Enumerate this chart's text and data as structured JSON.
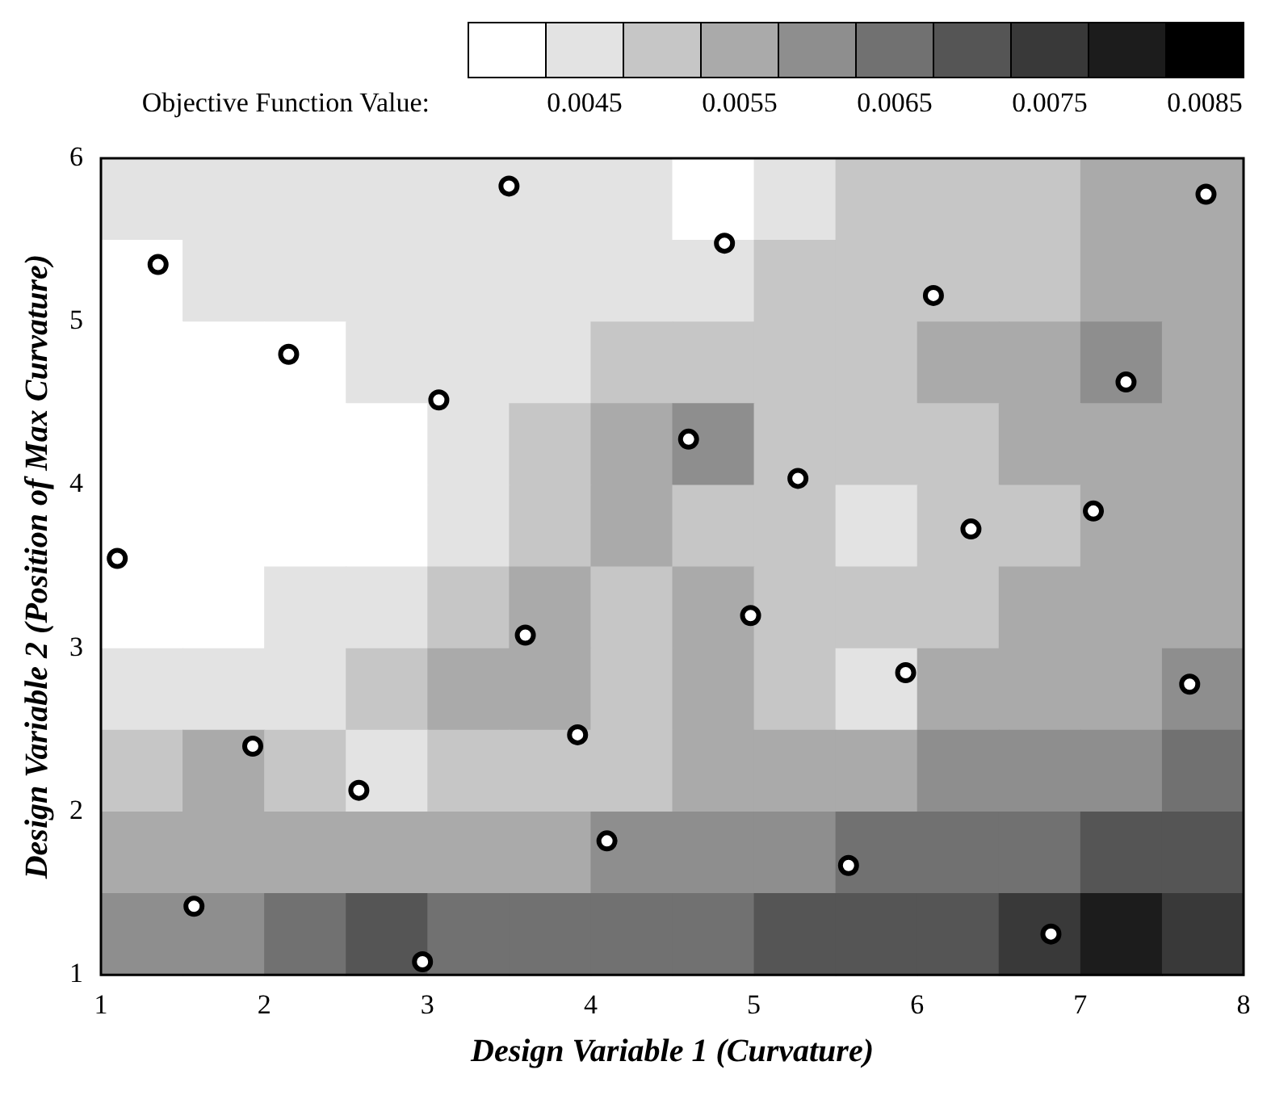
{
  "chart_data": {
    "type": "heatmap",
    "xlabel": "Design Variable 1 (Curvature)",
    "ylabel": "Design Variable 2 (Position of Max Curvature)",
    "clabel": "Objective Function Value:",
    "xlim": [
      1,
      8
    ],
    "ylim": [
      1,
      6
    ],
    "xticks": [
      1,
      2,
      3,
      4,
      5,
      6,
      7,
      8
    ],
    "yticks": [
      1,
      2,
      3,
      4,
      5,
      6
    ],
    "clim": [
      0.00375,
      0.00875
    ],
    "cticks": [
      0.0045,
      0.0055,
      0.0065,
      0.0075,
      0.0085
    ],
    "grid": false,
    "legend": false,
    "cells": [
      [
        0.0045,
        0.0045,
        0.0045,
        0.0045,
        0.0045,
        0.0045,
        0.0045,
        0.004,
        0.0045,
        0.005,
        0.005,
        0.005,
        0.0055,
        0.0055
      ],
      [
        0.004,
        0.0045,
        0.0045,
        0.0045,
        0.0045,
        0.0045,
        0.0045,
        0.0045,
        0.005,
        0.005,
        0.005,
        0.005,
        0.0055,
        0.0055
      ],
      [
        0.004,
        0.004,
        0.004,
        0.0045,
        0.0045,
        0.0045,
        0.005,
        0.005,
        0.005,
        0.005,
        0.0055,
        0.0055,
        0.006,
        0.0055
      ],
      [
        0.004,
        0.004,
        0.004,
        0.004,
        0.0045,
        0.005,
        0.0055,
        0.006,
        0.005,
        0.005,
        0.005,
        0.0055,
        0.0055,
        0.0055
      ],
      [
        0.004,
        0.004,
        0.004,
        0.004,
        0.0045,
        0.005,
        0.0055,
        0.005,
        0.005,
        0.0045,
        0.005,
        0.005,
        0.0055,
        0.0055
      ],
      [
        0.004,
        0.004,
        0.0045,
        0.0045,
        0.005,
        0.0055,
        0.005,
        0.0055,
        0.005,
        0.005,
        0.005,
        0.0055,
        0.0055,
        0.0055
      ],
      [
        0.0045,
        0.0045,
        0.0045,
        0.005,
        0.0055,
        0.0055,
        0.005,
        0.0055,
        0.005,
        0.0045,
        0.0055,
        0.0055,
        0.0055,
        0.006
      ],
      [
        0.005,
        0.0055,
        0.005,
        0.0045,
        0.005,
        0.005,
        0.005,
        0.0055,
        0.0055,
        0.0055,
        0.006,
        0.006,
        0.006,
        0.0065
      ],
      [
        0.0055,
        0.0055,
        0.0055,
        0.0055,
        0.0055,
        0.0055,
        0.006,
        0.006,
        0.006,
        0.0065,
        0.0065,
        0.0065,
        0.007,
        0.007
      ],
      [
        0.006,
        0.006,
        0.0065,
        0.007,
        0.0065,
        0.0065,
        0.0065,
        0.0065,
        0.007,
        0.007,
        0.007,
        0.0075,
        0.008,
        0.0075
      ]
    ],
    "series": [
      {
        "type": "scatter",
        "color": "#000000",
        "marker": "circle",
        "x": [
          1.1,
          1.35,
          1.57,
          1.93,
          2.15,
          2.58,
          2.97,
          3.07,
          3.5,
          3.6,
          3.92,
          4.1,
          4.6,
          4.82,
          4.98,
          5.27,
          5.58,
          5.93,
          6.1,
          6.33,
          6.82,
          7.08,
          7.28,
          7.67,
          7.77
        ],
        "values": [
          3.55,
          5.35,
          1.42,
          2.4,
          4.8,
          2.13,
          1.08,
          4.52,
          5.83,
          3.08,
          2.47,
          1.82,
          4.28,
          5.48,
          3.2,
          4.04,
          1.67,
          2.85,
          5.16,
          3.73,
          1.25,
          3.84,
          4.63,
          2.78,
          5.78
        ]
      }
    ]
  }
}
